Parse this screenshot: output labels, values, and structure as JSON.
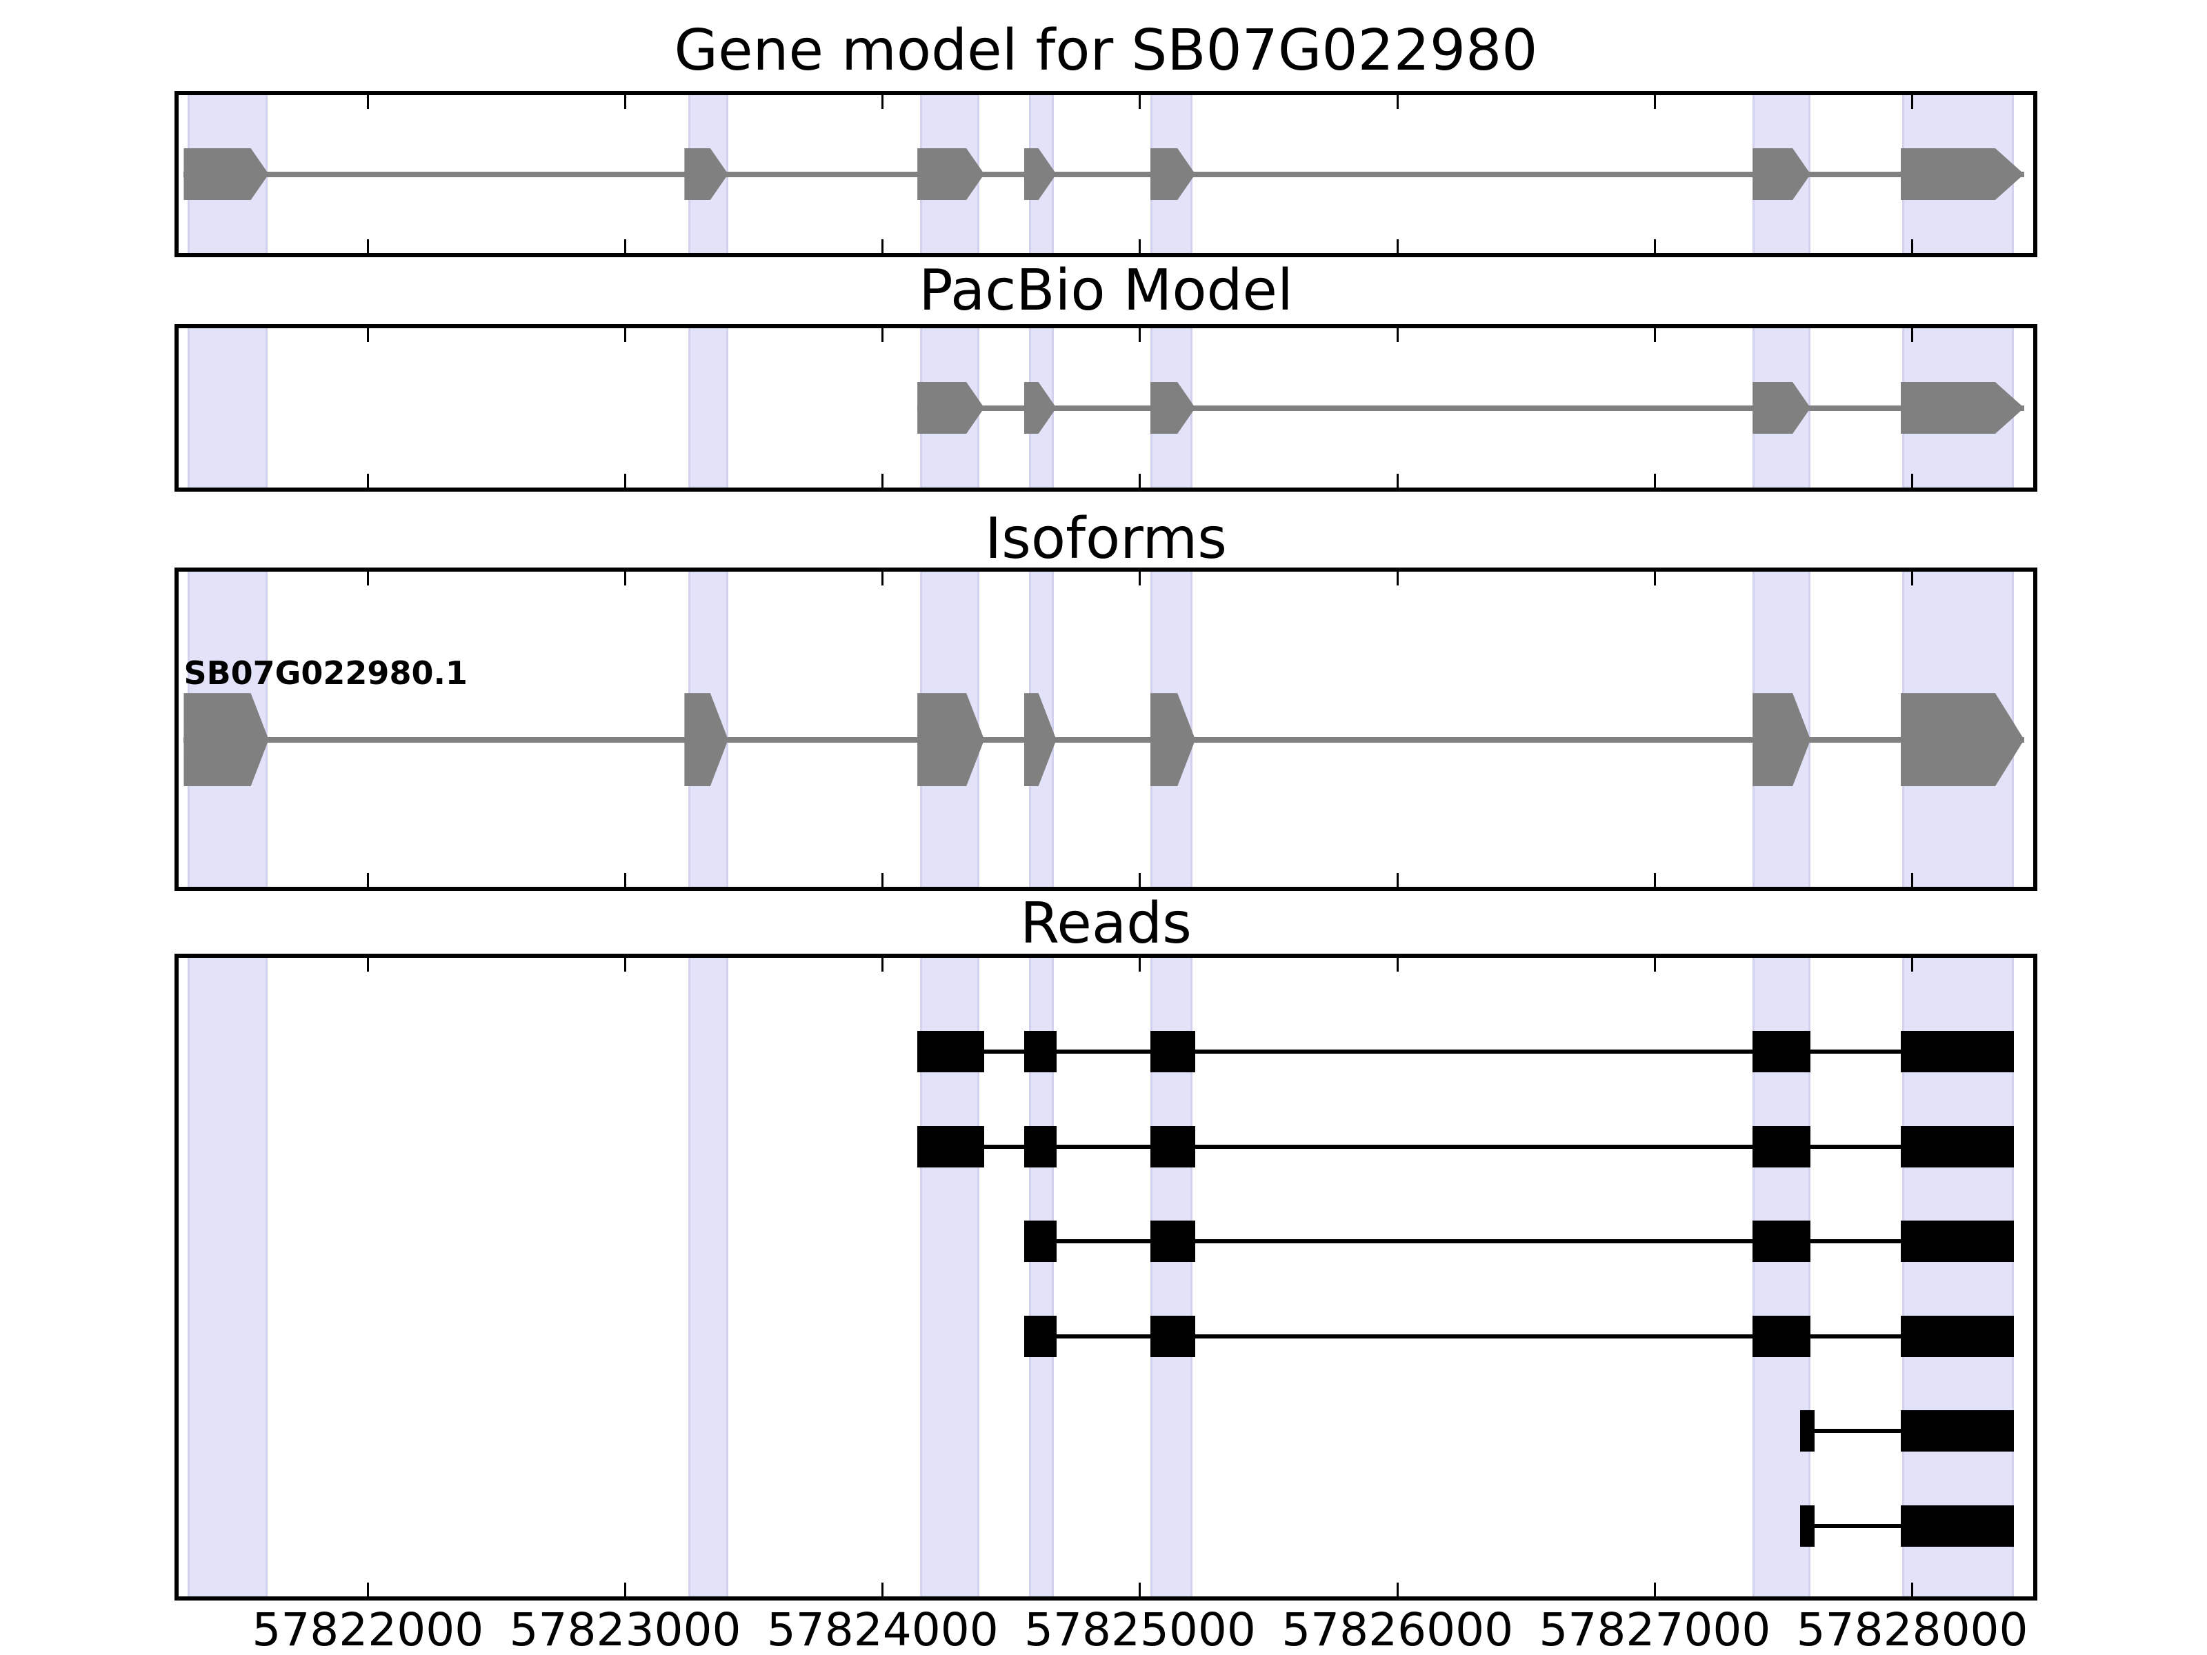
{
  "figure": {
    "background": "#ffffff"
  },
  "colors": {
    "model_exon": "#808080",
    "model_intron": "#808080",
    "read_black": "#000000",
    "highlight_band_fill": "#e2e2f8",
    "highlight_band_edge": "#d2d2ee",
    "panel_border": "#000000",
    "text": "#000000"
  },
  "axis": {
    "xmin": 57821265,
    "xmax": 57828470,
    "tick_values": [
      57822000,
      57823000,
      57824000,
      57825000,
      57826000,
      57827000,
      57828000
    ],
    "tick_labels": [
      "57822000",
      "57823000",
      "57824000",
      "57825000",
      "57826000",
      "57827000",
      "57828000"
    ]
  },
  "chart_data": {
    "type": "gene-model-tracks",
    "x_axis": {
      "range": [
        57821265,
        57828470
      ],
      "tick_values": [
        57822000,
        57823000,
        57824000,
        57825000,
        57826000,
        57827000,
        57828000
      ]
    },
    "highlight_bands": [
      [
        57821300,
        57821610
      ],
      [
        57823245,
        57823400
      ],
      [
        57824145,
        57824375
      ],
      [
        57824570,
        57824665
      ],
      [
        57825040,
        57825205
      ],
      [
        57827380,
        57827605
      ],
      [
        57827960,
        57828395
      ]
    ],
    "tracks": [
      {
        "id": "gene-model",
        "title": "Gene model for SB07G022980",
        "type": "model",
        "color": "#808080",
        "features": [
          {
            "strand": "+",
            "exons": [
              [
                57821285,
                57821615
              ],
              [
                57823230,
                57823400
              ],
              [
                57824135,
                57824395
              ],
              [
                57824550,
                57824675
              ],
              [
                57825040,
                57825215
              ],
              [
                57827380,
                57827605
              ],
              [
                57827955,
                57828435
              ]
            ]
          }
        ]
      },
      {
        "id": "pacbio-model",
        "title": "PacBio Model",
        "type": "model",
        "color": "#808080",
        "features": [
          {
            "strand": "+",
            "exons": [
              [
                57824135,
                57824395
              ],
              [
                57824550,
                57824675
              ],
              [
                57825040,
                57825215
              ],
              [
                57827380,
                57827605
              ],
              [
                57827955,
                57828435
              ]
            ]
          }
        ]
      },
      {
        "id": "isoforms",
        "title": "Isoforms",
        "type": "isoform",
        "color": "#808080",
        "features": [
          {
            "label": "SB07G022980.1",
            "strand": "+",
            "exons": [
              [
                57821285,
                57821615
              ],
              [
                57823230,
                57823400
              ],
              [
                57824135,
                57824395
              ],
              [
                57824550,
                57824675
              ],
              [
                57825040,
                57825215
              ],
              [
                57827380,
                57827605
              ],
              [
                57827955,
                57828435
              ]
            ]
          }
        ]
      },
      {
        "id": "reads",
        "title": "Reads",
        "type": "reads",
        "color": "#000000",
        "reads": [
          [
            [
              57824135,
              57824395
            ],
            [
              57824550,
              57824675
            ],
            [
              57825040,
              57825215
            ],
            [
              57827380,
              57827605
            ],
            [
              57827955,
              57828395
            ]
          ],
          [
            [
              57824135,
              57824395
            ],
            [
              57824550,
              57824675
            ],
            [
              57825040,
              57825215
            ],
            [
              57827380,
              57827605
            ],
            [
              57827955,
              57828395
            ]
          ],
          [
            [
              57824550,
              57824675
            ],
            [
              57825040,
              57825215
            ],
            [
              57827380,
              57827605
            ],
            [
              57827955,
              57828395
            ]
          ],
          [
            [
              57824550,
              57824675
            ],
            [
              57825040,
              57825215
            ],
            [
              57827380,
              57827605
            ],
            [
              57827955,
              57828395
            ]
          ],
          [
            [
              57827565,
              57827620
            ],
            [
              57827955,
              57828395
            ]
          ],
          [
            [
              57827565,
              57827620
            ],
            [
              57827955,
              57828395
            ]
          ]
        ]
      }
    ]
  }
}
